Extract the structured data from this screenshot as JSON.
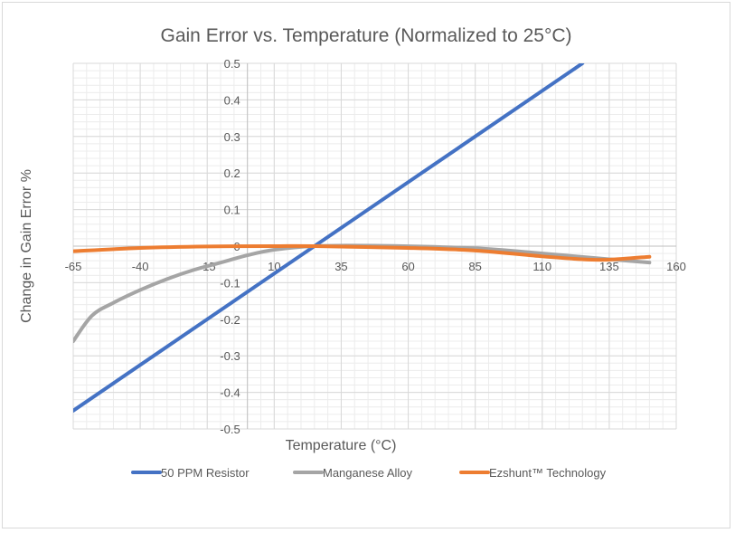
{
  "chart_data": {
    "type": "line",
    "title": "Gain Error vs. Temperature (Normalized to 25°C)",
    "xlabel": "Temperature (°C)",
    "ylabel": "Change in Gain Error %",
    "xlim": [
      -65,
      160
    ],
    "ylim": [
      -0.5,
      0.5
    ],
    "xticks": [
      -65,
      -40,
      -15,
      10,
      35,
      60,
      85,
      110,
      135,
      160
    ],
    "yticks": [
      0.5,
      0.4,
      0.3,
      0.2,
      0.1,
      0,
      -0.1,
      -0.2,
      -0.3,
      -0.4,
      -0.5
    ],
    "grid": true,
    "legend": "bottom",
    "series": [
      {
        "name": "50 PPM Resistor",
        "color": "#4472c4",
        "x": [
          -65,
          25,
          125
        ],
        "y": [
          -0.45,
          0,
          0.5
        ]
      },
      {
        "name": "Manganese Alloy",
        "color": "#a5a5a5",
        "x": [
          -65,
          -58,
          -50,
          -40,
          -30,
          -20,
          -10,
          0,
          10,
          25,
          50,
          85,
          110,
          135,
          150
        ],
        "y": [
          -0.26,
          -0.19,
          -0.155,
          -0.12,
          -0.09,
          -0.065,
          -0.045,
          -0.025,
          -0.01,
          0,
          0.001,
          -0.006,
          -0.02,
          -0.036,
          -0.045
        ]
      },
      {
        "name": "Ezshunt™ Technology",
        "color": "#ed7d31",
        "x": [
          -65,
          -40,
          -15,
          10,
          25,
          60,
          85,
          110,
          125,
          135,
          150
        ],
        "y": [
          -0.014,
          -0.005,
          -0.001,
          0.0,
          0.0,
          -0.005,
          -0.012,
          -0.028,
          -0.036,
          -0.037,
          -0.029
        ]
      }
    ]
  }
}
